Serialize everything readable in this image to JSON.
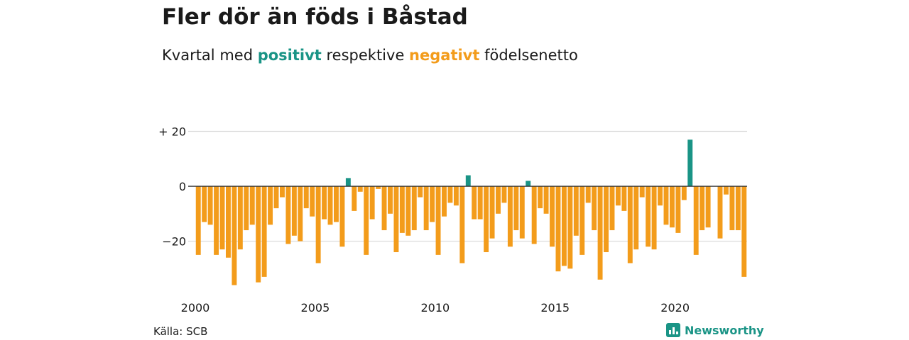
{
  "header": {
    "title": "Fler dör än föds i Båstad",
    "subtitle_prefix": "Kvartal med ",
    "subtitle_positive": "positivt",
    "subtitle_middle": " respektive ",
    "subtitle_negative": "negativt",
    "subtitle_suffix": " födelsenetto"
  },
  "footer": {
    "source": "Källa: SCB",
    "brand": "Newsworthy"
  },
  "colors": {
    "positive": "#1a9486",
    "negative": "#f39c1b",
    "grid": "#dddddd",
    "zero_line": "#333333"
  },
  "chart_data": {
    "type": "bar",
    "title": "Fler dör än föds i Båstad",
    "xlabel": "",
    "ylabel": "",
    "ylim": [
      -37,
      22
    ],
    "y_ticks": [
      {
        "value": 20,
        "label": "+ 20"
      },
      {
        "value": 0,
        "label": "0"
      },
      {
        "value": -20,
        "label": "−20"
      }
    ],
    "x_ticks": [
      {
        "value": 2000,
        "label": "2000"
      },
      {
        "value": 2005,
        "label": "2005"
      },
      {
        "value": 2010,
        "label": "2010"
      },
      {
        "value": 2015,
        "label": "2015"
      },
      {
        "value": 2020,
        "label": "2020"
      }
    ],
    "grid": true,
    "start_year": 2000,
    "start_quarter": 1,
    "values": [
      -25,
      -13,
      -14,
      -25,
      -23,
      -26,
      -36,
      -23,
      -16,
      -14,
      -35,
      -33,
      -14,
      -8,
      -4,
      -21,
      -18,
      -20,
      -8,
      -11,
      -28,
      -12,
      -14,
      -13,
      -22,
      3,
      -9,
      -2,
      -25,
      -12,
      -1,
      -16,
      -10,
      -24,
      -17,
      -18,
      -16,
      -4,
      -16,
      -13,
      -25,
      -11,
      -6,
      -7,
      -28,
      4,
      -12,
      -12,
      -24,
      -19,
      -10,
      -6,
      -22,
      -16,
      -19,
      2,
      -21,
      -8,
      -10,
      -22,
      -31,
      -29,
      -30,
      -18,
      -25,
      -6,
      -16,
      -34,
      -24,
      -16,
      -7,
      -9,
      -28,
      -23,
      -4,
      -22,
      -23,
      -7,
      -14,
      -15,
      -17,
      -5,
      17,
      -25,
      -16,
      -15,
      0,
      -19,
      -3,
      -16,
      -16,
      -33
    ]
  }
}
